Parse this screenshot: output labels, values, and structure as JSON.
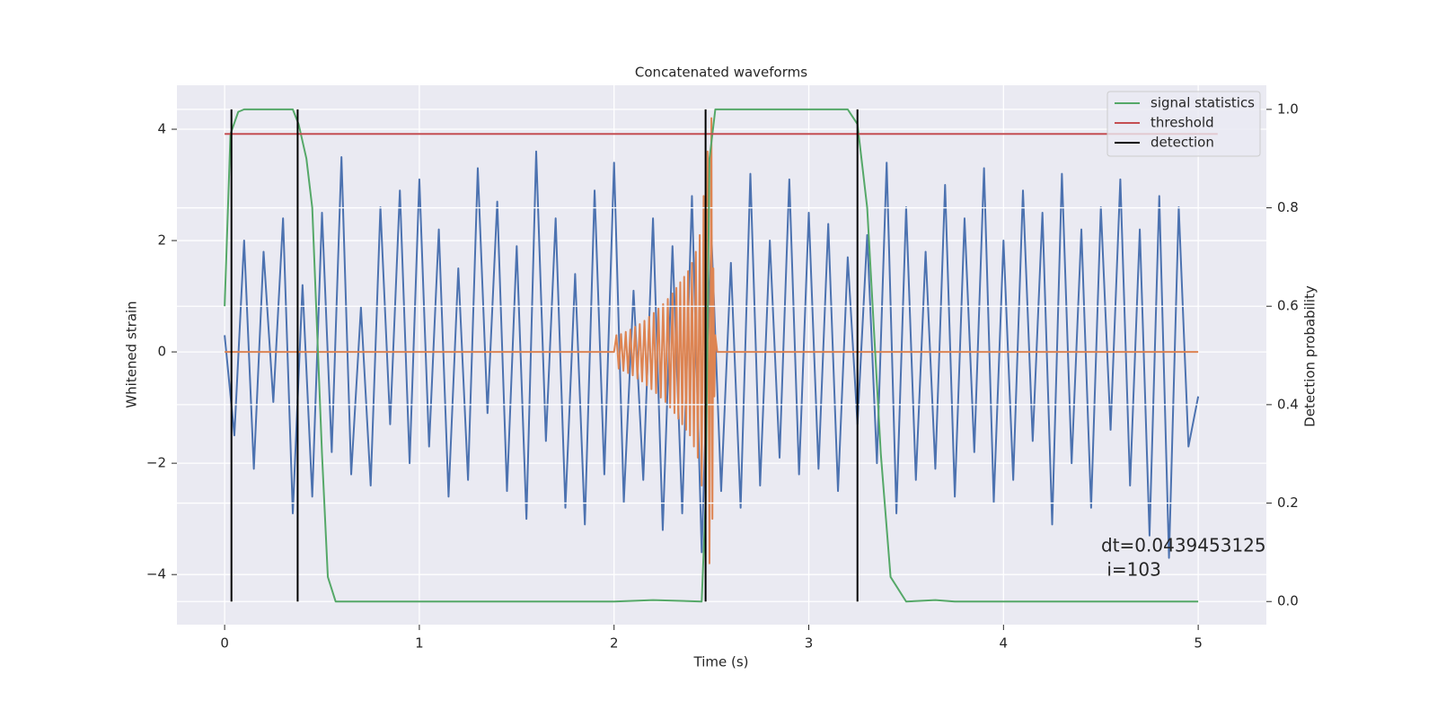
{
  "chart_data": {
    "type": "line",
    "title": "Concatenated waveforms",
    "xlabel": "Time (s)",
    "ylabel": "Whitened strain",
    "y2label": "Detection probability",
    "xlim": [
      -0.245,
      5.35
    ],
    "ylim": [
      -4.9,
      4.79
    ],
    "y2lim": [
      -0.047,
      1.049
    ],
    "xticks": [
      0,
      1,
      2,
      3,
      4,
      5
    ],
    "yticks": [
      {
        "value": -4,
        "label": "−4"
      },
      {
        "value": -2,
        "label": "−2"
      },
      0,
      2,
      4
    ],
    "y2ticks": [
      {
        "value": 0,
        "label": "0.0"
      },
      0.2,
      0.4,
      0.6,
      0.8,
      {
        "value": 1,
        "label": "1.0"
      }
    ],
    "grid": true,
    "legend_loc": "upper right",
    "annotation": [
      "dt=0.0439453125",
      " i=103"
    ],
    "series": [
      {
        "color": "#4c72b0",
        "axis": "y",
        "x": [
          0,
          0.05,
          0.1,
          0.15,
          0.2,
          0.25,
          0.3,
          0.35,
          0.4,
          0.45,
          0.5,
          0.55,
          0.6,
          0.65,
          0.7,
          0.75,
          0.8,
          0.85,
          0.9,
          0.95,
          1,
          1.05,
          1.1,
          1.15,
          1.2,
          1.25,
          1.3,
          1.35,
          1.4,
          1.45,
          1.5,
          1.55,
          1.6,
          1.65,
          1.7,
          1.75,
          1.8,
          1.85,
          1.9,
          1.95,
          2,
          2.05,
          2.1,
          2.15,
          2.2,
          2.25,
          2.3,
          2.35,
          2.4,
          2.45,
          2.5,
          2.55,
          2.6,
          2.65,
          2.7,
          2.75,
          2.8,
          2.85,
          2.9,
          2.95,
          3,
          3.05,
          3.1,
          3.15,
          3.2,
          3.25,
          3.3,
          3.35,
          3.4,
          3.45,
          3.5,
          3.55,
          3.6,
          3.65,
          3.7,
          3.75,
          3.8,
          3.85,
          3.9,
          3.95,
          4,
          4.05,
          4.1,
          4.15,
          4.2,
          4.25,
          4.3,
          4.35,
          4.4,
          4.45,
          4.5,
          4.55,
          4.6,
          4.65,
          4.7,
          4.75,
          4.8,
          4.85,
          4.9,
          4.95,
          5
        ],
        "values": [
          0.3,
          -1.5,
          2.0,
          -2.1,
          1.8,
          -0.9,
          2.4,
          -2.9,
          1.2,
          -2.6,
          2.5,
          -1.8,
          3.5,
          -2.2,
          0.8,
          -2.4,
          2.6,
          -1.3,
          2.9,
          -2.0,
          3.1,
          -1.7,
          2.2,
          -2.6,
          1.5,
          -2.3,
          3.3,
          -1.1,
          2.7,
          -2.5,
          1.9,
          -3.0,
          3.6,
          -1.6,
          2.4,
          -2.8,
          1.4,
          -3.1,
          2.9,
          -2.2,
          3.4,
          -2.7,
          1.1,
          -2.3,
          2.4,
          -3.2,
          1.9,
          -2.9,
          2.8,
          -3.6,
          2.1,
          -2.5,
          1.6,
          -2.8,
          3.2,
          -2.4,
          2.0,
          -1.9,
          3.1,
          -2.2,
          2.5,
          -2.1,
          2.3,
          -2.5,
          1.7,
          -1.3,
          2.1,
          -2.0,
          3.4,
          -2.9,
          2.6,
          -2.3,
          1.8,
          -2.1,
          3.0,
          -2.6,
          2.4,
          -1.8,
          3.3,
          -2.7,
          2.0,
          -2.3,
          2.9,
          -1.6,
          2.5,
          -3.1,
          3.2,
          -2.0,
          2.2,
          -2.8,
          2.6,
          -1.4,
          3.1,
          -2.4,
          2.2,
          -3.3,
          2.8,
          -3.7,
          2.6,
          -1.7,
          -0.8
        ]
      },
      {
        "color": "#dd8452",
        "axis": "y",
        "x": [
          0,
          2.0,
          2.012,
          2.024,
          2.036,
          2.048,
          2.06,
          2.072,
          2.084,
          2.096,
          2.108,
          2.12,
          2.132,
          2.144,
          2.156,
          2.168,
          2.18,
          2.192,
          2.204,
          2.216,
          2.228,
          2.24,
          2.252,
          2.264,
          2.276,
          2.288,
          2.3,
          2.31,
          2.32,
          2.33,
          2.34,
          2.35,
          2.36,
          2.37,
          2.38,
          2.39,
          2.4,
          2.41,
          2.42,
          2.43,
          2.44,
          2.45,
          2.46,
          2.47,
          2.48,
          2.49,
          2.5,
          2.505,
          2.51,
          2.515,
          2.52,
          2.53,
          5
        ],
        "values": [
          0,
          0,
          0.3,
          -0.3,
          0.32,
          -0.34,
          0.36,
          -0.38,
          0.4,
          -0.42,
          0.45,
          -0.48,
          0.5,
          -0.53,
          0.56,
          -0.6,
          0.63,
          -0.67,
          0.7,
          -0.74,
          0.78,
          -0.82,
          0.86,
          -0.9,
          0.95,
          -1.0,
          1.05,
          -1.1,
          1.15,
          -1.2,
          1.25,
          -1.3,
          1.35,
          -1.4,
          1.45,
          -1.5,
          1.6,
          -1.7,
          1.8,
          -1.9,
          2.1,
          -2.4,
          2.8,
          -3.0,
          3.6,
          -3.8,
          4.2,
          -3.0,
          1.5,
          -0.8,
          0.3,
          0,
          0
        ]
      },
      {
        "name": "signal statistics",
        "color": "#55a868",
        "axis": "y2",
        "x": [
          0,
          0.03,
          0.07,
          0.1,
          0.35,
          0.38,
          0.42,
          0.45,
          0.5,
          0.53,
          0.57,
          2.0,
          2.2,
          2.45,
          2.47,
          2.49,
          2.52,
          3.2,
          3.25,
          3.3,
          3.37,
          3.42,
          3.5,
          3.65,
          3.75,
          5.0
        ],
        "values": [
          0.6,
          0.95,
          0.995,
          1.0,
          1.0,
          0.97,
          0.9,
          0.8,
          0.3,
          0.05,
          0.0,
          0.0,
          0.003,
          0.0,
          0.2,
          0.9,
          1.0,
          1.0,
          0.97,
          0.8,
          0.3,
          0.05,
          0.0,
          0.003,
          0.0,
          0.0
        ]
      },
      {
        "name": "threshold",
        "color": "#c44e52",
        "axis": "y2",
        "x": [
          0,
          5.1
        ],
        "values": [
          0.95,
          0.95
        ]
      },
      {
        "name": "detection",
        "color": "#000000",
        "axis": "y2",
        "kind": "vline",
        "x": [
          0.035,
          0.375,
          2.47,
          3.25
        ],
        "ymin": 0,
        "ymax": 1
      }
    ]
  }
}
